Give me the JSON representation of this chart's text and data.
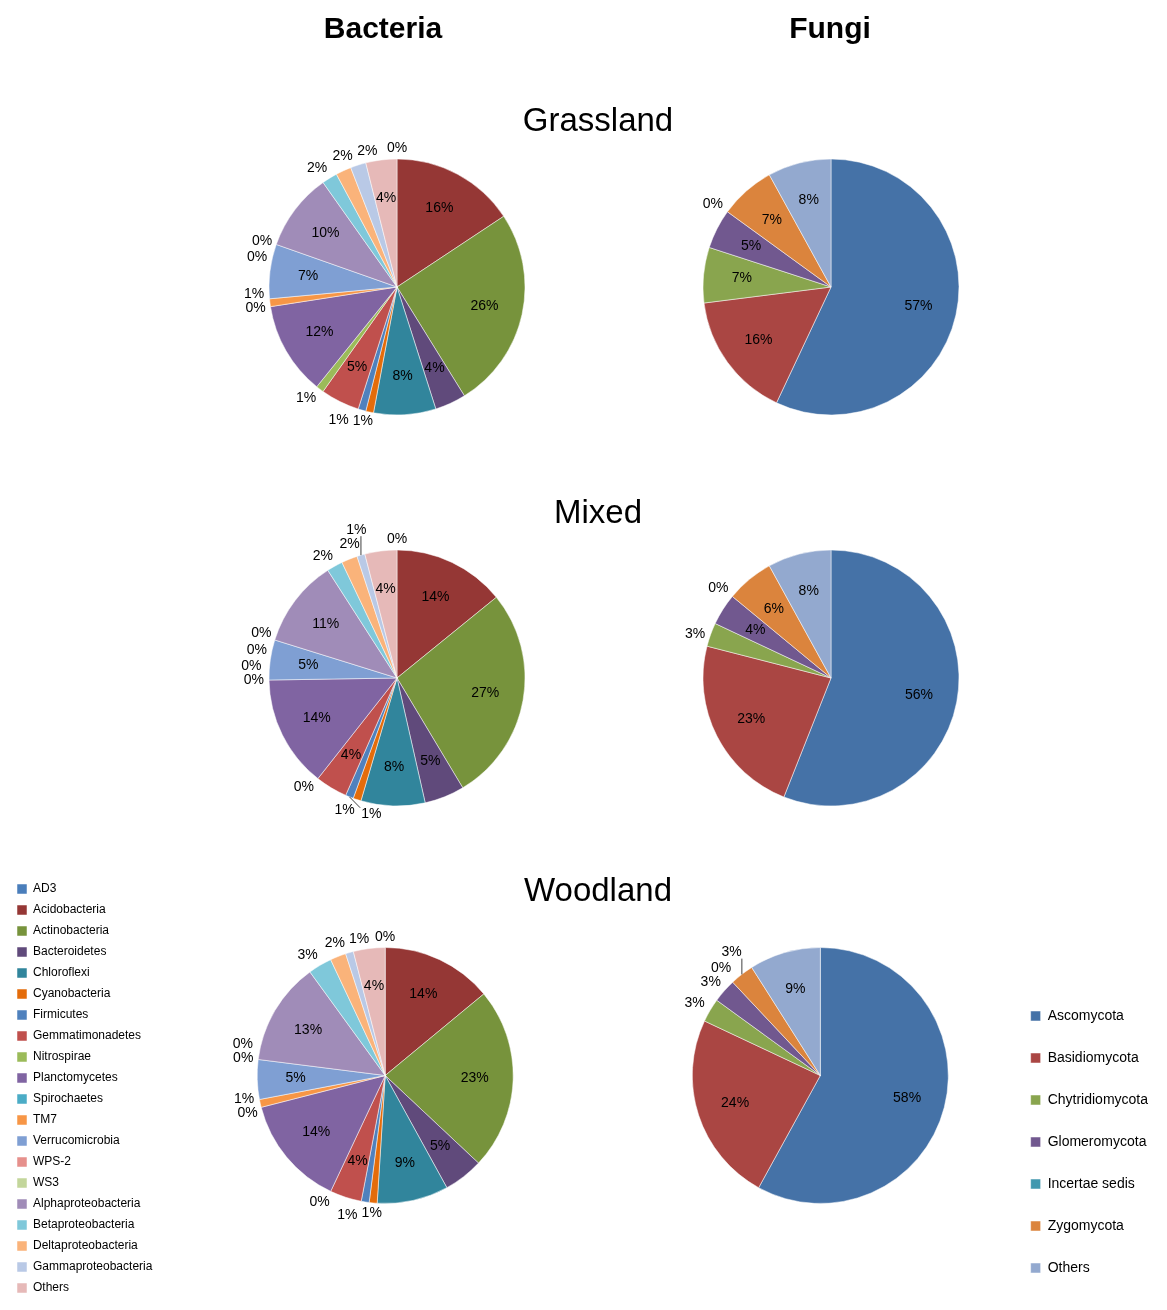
{
  "chart_data": [
    {
      "type": "pie",
      "title": "Bacteria",
      "subtitle": "Grassland",
      "categories": [
        null,
        null,
        null,
        null,
        null,
        null,
        null,
        null,
        null,
        null,
        null,
        null,
        null,
        null,
        null,
        null,
        null,
        null,
        null,
        null
      ],
      "values": [
        0,
        16,
        26,
        4,
        8,
        1,
        1,
        5,
        1,
        12,
        0,
        1,
        7,
        0,
        0,
        10,
        2,
        2,
        2,
        4
      ],
      "value_labels": [
        "0%",
        "16%",
        "26%",
        "4%",
        "8%",
        "1%",
        "1%",
        "5%",
        "1%",
        "12%",
        "0%",
        "1%",
        "7%",
        "0%",
        "0%",
        "10%",
        "2%",
        "2%",
        "2%",
        "4%"
      ],
      "colors": [
        "#4a7ebb",
        "#953735",
        "#77933c",
        "#604a7b",
        "#31859c",
        "#e46c0a",
        "#4f81bd",
        "#c0504d",
        "#9bbb59",
        "#8064a2",
        "#4bacc6",
        "#f79646",
        "#7f9fd3",
        "#e6908c",
        "#c3d69b",
        "#a08cb8",
        "#7fc8da",
        "#fab37a",
        "#b9c9e6",
        "#e6b9b8"
      ]
    },
    {
      "type": "pie",
      "title": "Fungi",
      "categories": [
        null,
        null,
        null,
        null,
        null,
        null,
        null
      ],
      "values": [
        57,
        16,
        7,
        5,
        0,
        7,
        8
      ],
      "value_labels": [
        "57%",
        "16%",
        "7%",
        "5%",
        "0%",
        "7%",
        "8%"
      ],
      "colors": [
        "#4572a7",
        "#aa4643",
        "#89a54e",
        "#71588f",
        "#4198af",
        "#db843d",
        "#93a9cf"
      ]
    },
    {
      "type": "pie",
      "subtitle": "Mixed",
      "categories": [
        null,
        null,
        null,
        null,
        null,
        null,
        null,
        null,
        null,
        null,
        null,
        null,
        null,
        null,
        null,
        null,
        null,
        null,
        null,
        null
      ],
      "values": [
        0,
        14,
        27,
        5,
        8,
        1,
        1,
        4,
        0,
        14,
        0,
        0,
        5,
        0,
        0,
        11,
        2,
        2,
        1,
        4
      ],
      "value_labels": [
        "0%",
        "14%",
        "27%",
        "5%",
        "8%",
        "1%",
        "1%",
        "4%",
        "0%",
        "14%",
        "0%",
        "0%",
        "5%",
        "0%",
        "0%",
        "11%",
        "2%",
        "2%",
        "1%",
        "4%"
      ],
      "colors": [
        "#4a7ebb",
        "#953735",
        "#77933c",
        "#604a7b",
        "#31859c",
        "#e46c0a",
        "#4f81bd",
        "#c0504d",
        "#9bbb59",
        "#8064a2",
        "#4bacc6",
        "#f79646",
        "#7f9fd3",
        "#e6908c",
        "#c3d69b",
        "#a08cb8",
        "#7fc8da",
        "#fab37a",
        "#b9c9e6",
        "#e6b9b8"
      ]
    },
    {
      "type": "pie",
      "categories": [
        null,
        null,
        null,
        null,
        null,
        null,
        null
      ],
      "values": [
        56,
        23,
        3,
        4,
        0,
        6,
        8
      ],
      "value_labels": [
        "56%",
        "23%",
        "3%",
        "4%",
        "0%",
        "6%",
        "8%"
      ],
      "colors": [
        "#4572a7",
        "#aa4643",
        "#89a54e",
        "#71588f",
        "#4198af",
        "#db843d",
        "#93a9cf"
      ]
    },
    {
      "type": "pie",
      "subtitle": "Woodland",
      "legend": "left",
      "categories": [
        "AD3",
        "Acidobacteria",
        "Actinobacteria",
        "Bacteroidetes",
        "Chloroflexi",
        "Cyanobacteria",
        "Firmicutes",
        "Gemmatimonadetes",
        "Nitrospirae",
        "Planctomycetes",
        "Spirochaetes",
        "TM7",
        "Verrucomicrobia",
        "WPS-2",
        "WS3",
        "Alphaproteobacteria",
        "Betaproteobacteria",
        "Deltaproteobacteria",
        "Gammaproteobacteria",
        "Others"
      ],
      "values": [
        0,
        14,
        23,
        5,
        9,
        1,
        1,
        4,
        0,
        14,
        0,
        1,
        5,
        0,
        0,
        13,
        3,
        2,
        1,
        4
      ],
      "value_labels": [
        "0%",
        "14%",
        "23%",
        "5%",
        "9%",
        "1%",
        "1%",
        "4%",
        "0%",
        "14%",
        "0%",
        "1%",
        "5%",
        "0%",
        "0%",
        "13%",
        "3%",
        "2%",
        "1%",
        "4%"
      ],
      "colors": [
        "#4a7ebb",
        "#953735",
        "#77933c",
        "#604a7b",
        "#31859c",
        "#e46c0a",
        "#4f81bd",
        "#c0504d",
        "#9bbb59",
        "#8064a2",
        "#4bacc6",
        "#f79646",
        "#7f9fd3",
        "#e6908c",
        "#c3d69b",
        "#a08cb8",
        "#7fc8da",
        "#fab37a",
        "#b9c9e6",
        "#e6b9b8"
      ]
    },
    {
      "type": "pie",
      "legend": "right",
      "categories": [
        "Ascomycota",
        "Basidiomycota",
        "Chytridiomycota",
        "Glomeromycota",
        "Incertae sedis",
        "Zygomycota",
        "Others"
      ],
      "values": [
        58,
        24,
        3,
        3,
        0,
        3,
        9
      ],
      "value_labels": [
        "58%",
        "24%",
        "3%",
        "3%",
        "0%",
        "3%",
        "9%"
      ],
      "colors": [
        "#4572a7",
        "#aa4643",
        "#89a54e",
        "#71588f",
        "#4198af",
        "#db843d",
        "#93a9cf"
      ]
    }
  ]
}
